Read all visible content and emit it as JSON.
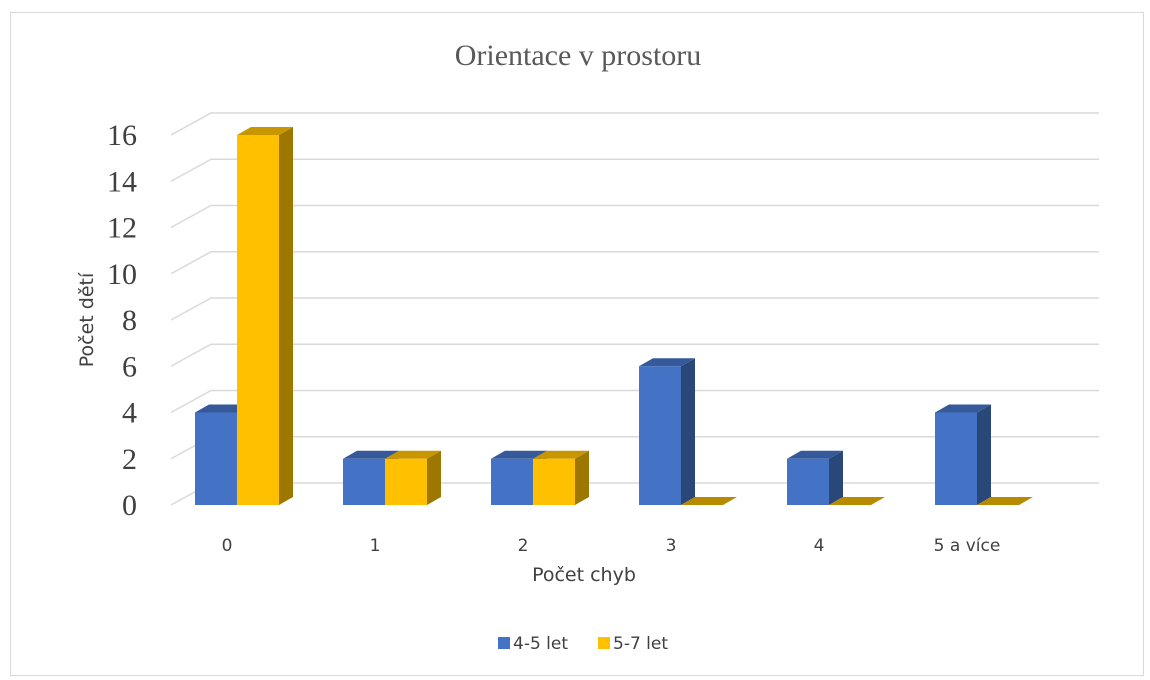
{
  "chart_data": {
    "type": "bar",
    "style": "3d-clustered-column",
    "title": "Orientace v prostoru",
    "xlabel": "Počet chyb",
    "ylabel": "Počet dětí",
    "categories": [
      "0",
      "1",
      "2",
      "3",
      "4",
      "5 a více"
    ],
    "series": [
      {
        "name": "4-5 let",
        "values": [
          4,
          2,
          2,
          6,
          2,
          4
        ],
        "color": "#4472C4"
      },
      {
        "name": "5-7 let",
        "values": [
          16,
          2,
          2,
          0,
          0,
          0
        ],
        "color": "#FFC000"
      }
    ],
    "ylim": [
      0,
      16
    ],
    "yticks": [
      "0",
      "2",
      "4",
      "6",
      "8",
      "10",
      "12",
      "14",
      "16"
    ],
    "grid": true,
    "legend_position": "bottom"
  }
}
